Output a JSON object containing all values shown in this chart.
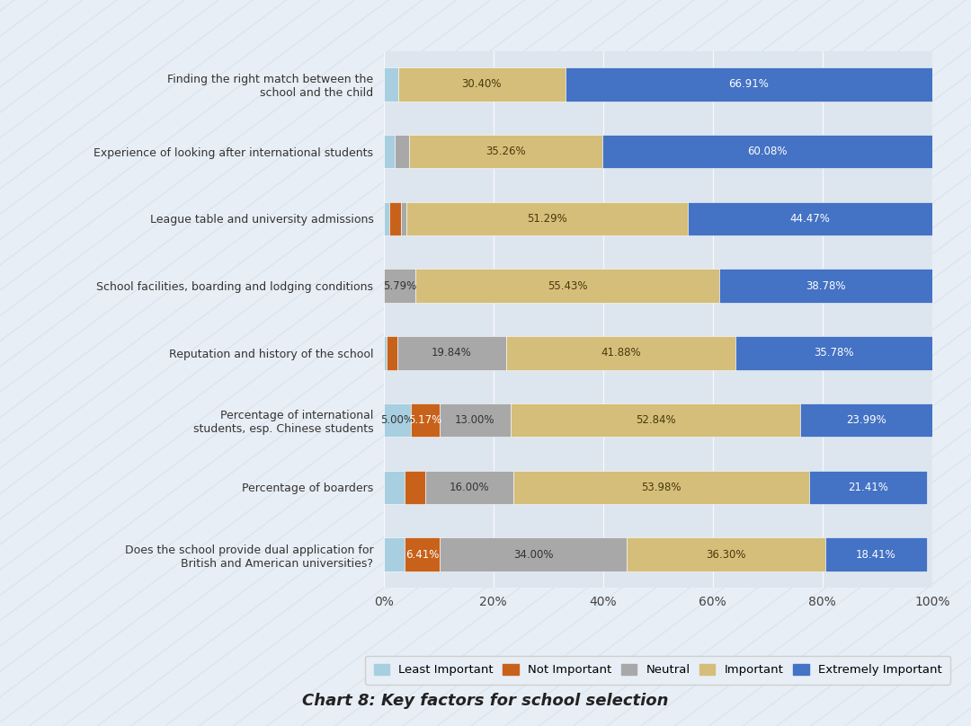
{
  "categories": [
    "Finding the right match between the\nschool and the child",
    "Experience of looking after international students",
    "League table and university admissions",
    "School facilities, boarding and lodging conditions",
    "Reputation and history of the school",
    "Percentage of international\nstudents, esp. Chinese students",
    "Percentage of boarders",
    "Does the school provide dual application for\nBritish and American universities?"
  ],
  "segments": {
    "Least Important": [
      2.69,
      2.0,
      1.0,
      0.0,
      0.5,
      5.0,
      3.88,
      3.88
    ],
    "Not Important": [
      0.0,
      0.0,
      2.24,
      0.0,
      2.0,
      5.17,
      3.73,
      6.41
    ],
    "Neutral": [
      0.0,
      2.66,
      1.0,
      5.79,
      19.84,
      13.0,
      16.0,
      34.0
    ],
    "Important": [
      30.4,
      35.26,
      51.29,
      55.43,
      41.88,
      52.84,
      53.98,
      36.3
    ],
    "Extremely Important": [
      66.91,
      60.08,
      44.47,
      38.78,
      35.78,
      23.99,
      21.41,
      18.41
    ]
  },
  "colors": {
    "Least Important": "#a8cfe0",
    "Not Important": "#c8621a",
    "Neutral": "#a8a8a8",
    "Important": "#d4be7a",
    "Extremely Important": "#4472c4"
  },
  "label_threshold": 5.0,
  "title": "Chart 8: Key factors for school selection",
  "background_color": "#e8eef5",
  "plot_background": "#dde5ef",
  "bar_height": 0.5,
  "figsize": [
    10.8,
    8.08
  ],
  "dpi": 100
}
